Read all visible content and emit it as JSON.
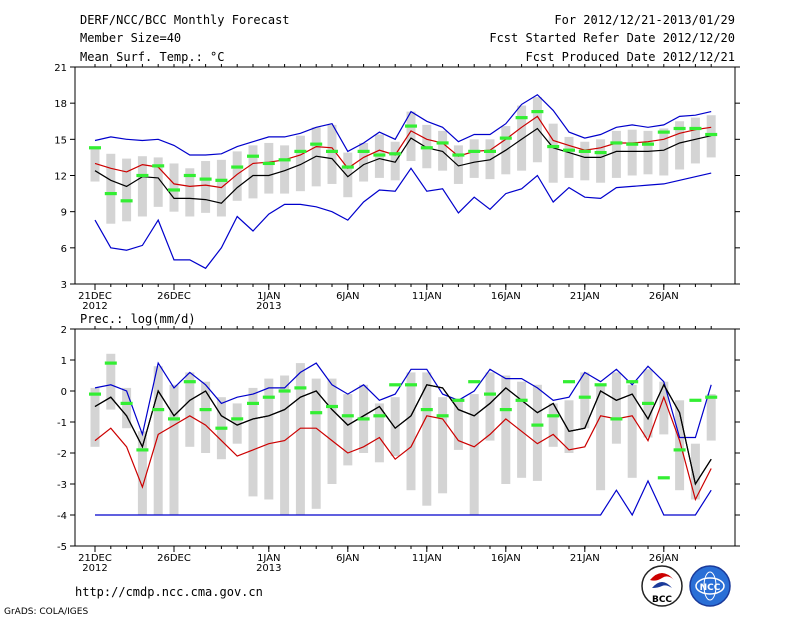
{
  "header": {
    "title": "DERF/NCC/BCC Monthly Forecast",
    "member_size": "Member Size=40",
    "variable": "Mean Surf. Temp.: °C",
    "forecast_period": "For 2012/12/21-2013/01/29",
    "started_date": "Fcst Started Refer Date 2012/12/20",
    "produced_date": "Fcst Produced Date 2012/12/21"
  },
  "footer": {
    "url": "http://cmdp.ncc.cma.gov.cn",
    "grads": "GrADS: COLA/IGES",
    "logo_left": "BCC",
    "logo_right": "NCC"
  },
  "colors": {
    "max": "#0000cc",
    "min": "#0000cc",
    "mean": "#000000",
    "median": "#cc0000",
    "box": "#d4d4d4",
    "obs": "#33ee33",
    "grid": "#aaaaaa"
  },
  "chart_data": [
    {
      "type": "line",
      "title": "Mean Surf. Temp.: °C",
      "x": [
        "21DEC",
        "22",
        "23",
        "24",
        "25",
        "26DEC",
        "27",
        "28",
        "29",
        "30",
        "31",
        "1JAN",
        "2",
        "3",
        "4",
        "5",
        "6JAN",
        "7",
        "8",
        "9",
        "10",
        "11JAN",
        "12",
        "13",
        "14",
        "15",
        "16JAN",
        "17",
        "18",
        "19",
        "20",
        "21JAN",
        "22",
        "23",
        "24",
        "25",
        "26JAN",
        "27",
        "28",
        "29"
      ],
      "xticks": [
        {
          "i": 0,
          "label": "21DEC",
          "sub": "2012"
        },
        {
          "i": 5,
          "label": "26DEC"
        },
        {
          "i": 11,
          "label": "1JAN",
          "sub": "2013"
        },
        {
          "i": 16,
          "label": "6JAN"
        },
        {
          "i": 21,
          "label": "11JAN"
        },
        {
          "i": 26,
          "label": "16JAN"
        },
        {
          "i": 31,
          "label": "21JAN"
        },
        {
          "i": 36,
          "label": "26JAN"
        }
      ],
      "ylim": [
        3,
        21
      ],
      "yticks": [
        3,
        6,
        9,
        12,
        15,
        18,
        21
      ],
      "series": [
        {
          "name": "max",
          "values": [
            14.9,
            15.2,
            15.0,
            14.9,
            15.0,
            14.5,
            13.7,
            13.7,
            13.8,
            14.4,
            14.8,
            15.2,
            15.2,
            15.5,
            16.0,
            16.3,
            14.0,
            14.7,
            15.6,
            15.0,
            17.3,
            16.5,
            16.0,
            14.8,
            15.4,
            15.4,
            16.3,
            17.9,
            18.7,
            17.4,
            15.6,
            15.1,
            15.4,
            16.0,
            16.2,
            16.0,
            16.2,
            16.9,
            17.0,
            17.3
          ]
        },
        {
          "name": "mean",
          "values": [
            12.4,
            11.6,
            11.1,
            11.9,
            11.8,
            10.1,
            10.1,
            10.0,
            9.7,
            11.0,
            12.0,
            12.0,
            12.4,
            12.9,
            13.6,
            13.4,
            11.9,
            12.9,
            13.4,
            13.1,
            15.1,
            14.3,
            14.0,
            12.8,
            13.1,
            13.3,
            14.1,
            15.0,
            15.9,
            14.3,
            13.9,
            13.5,
            13.5,
            14.0,
            14.0,
            14.0,
            14.1,
            14.7,
            15.0,
            15.3
          ]
        },
        {
          "name": "median",
          "values": [
            13.0,
            12.6,
            12.3,
            12.9,
            12.7,
            11.3,
            11.1,
            11.2,
            11.0,
            12.1,
            13.0,
            13.1,
            13.3,
            13.7,
            14.4,
            14.3,
            12.6,
            13.5,
            14.1,
            13.7,
            15.7,
            15.0,
            14.7,
            13.6,
            14.0,
            14.1,
            15.0,
            16.0,
            16.9,
            14.9,
            14.5,
            14.1,
            14.3,
            14.7,
            14.7,
            14.8,
            15.0,
            15.5,
            15.8,
            16.0
          ]
        },
        {
          "name": "min",
          "values": [
            8.3,
            6.0,
            5.8,
            6.2,
            8.3,
            5.0,
            5.0,
            4.3,
            6.0,
            8.6,
            7.4,
            8.8,
            9.6,
            9.6,
            9.4,
            9.0,
            8.3,
            9.8,
            10.8,
            10.7,
            12.6,
            10.7,
            10.9,
            8.9,
            10.2,
            9.2,
            10.5,
            10.9,
            12.0,
            9.8,
            11.0,
            10.2,
            10.1,
            11.0,
            11.1,
            11.2,
            11.3,
            11.6,
            11.9,
            12.2
          ]
        },
        {
          "name": "box_low",
          "values": [
            11.5,
            8.0,
            8.2,
            8.6,
            9.4,
            9.0,
            8.6,
            8.9,
            8.6,
            9.9,
            10.1,
            10.5,
            10.5,
            10.7,
            11.1,
            11.3,
            10.2,
            11.5,
            11.8,
            11.6,
            13.2,
            12.6,
            12.4,
            11.3,
            11.8,
            11.7,
            12.1,
            12.4,
            13.1,
            11.4,
            11.8,
            11.6,
            11.4,
            11.8,
            12.0,
            12.1,
            12.0,
            12.5,
            13.0,
            13.5
          ]
        },
        {
          "name": "box_high",
          "values": [
            14.4,
            13.8,
            13.4,
            13.6,
            13.5,
            13.0,
            12.6,
            13.2,
            13.3,
            14.0,
            14.5,
            14.7,
            14.5,
            15.3,
            16.0,
            16.2,
            13.9,
            14.7,
            15.4,
            14.8,
            17.3,
            16.2,
            15.7,
            14.5,
            15.0,
            15.0,
            16.1,
            17.8,
            18.5,
            16.3,
            15.2,
            14.8,
            15.0,
            15.7,
            15.8,
            15.7,
            15.9,
            16.5,
            16.8,
            17.0
          ]
        },
        {
          "name": "obs",
          "values": [
            14.3,
            10.5,
            9.9,
            12.0,
            12.8,
            10.8,
            12.0,
            11.7,
            11.6,
            12.7,
            13.6,
            13.0,
            13.3,
            14.0,
            14.6,
            14.0,
            12.7,
            14.0,
            13.7,
            13.8,
            16.1,
            14.3,
            14.7,
            13.7,
            14.0,
            14.0,
            15.1,
            16.8,
            17.3,
            14.4,
            14.1,
            14.0,
            13.9,
            14.7,
            14.6,
            14.6,
            15.6,
            15.9,
            15.9,
            15.4
          ]
        }
      ]
    },
    {
      "type": "line",
      "title": "Prec.: log(mm/d)",
      "x": [
        "21DEC",
        "22",
        "23",
        "24",
        "25",
        "26DEC",
        "27",
        "28",
        "29",
        "30",
        "31",
        "1JAN",
        "2",
        "3",
        "4",
        "5",
        "6JAN",
        "7",
        "8",
        "9",
        "10",
        "11JAN",
        "12",
        "13",
        "14",
        "15",
        "16JAN",
        "17",
        "18",
        "19",
        "20",
        "21JAN",
        "22",
        "23",
        "24",
        "25",
        "26JAN",
        "27",
        "28",
        "29"
      ],
      "xticks": [
        {
          "i": 0,
          "label": "21DEC",
          "sub": "2012"
        },
        {
          "i": 5,
          "label": "26DEC"
        },
        {
          "i": 11,
          "label": "1JAN",
          "sub": "2013"
        },
        {
          "i": 16,
          "label": "6JAN"
        },
        {
          "i": 21,
          "label": "11JAN"
        },
        {
          "i": 26,
          "label": "16JAN"
        },
        {
          "i": 31,
          "label": "21JAN"
        },
        {
          "i": 36,
          "label": "26JAN"
        }
      ],
      "ylim": [
        -5,
        2
      ],
      "yticks": [
        -5,
        -4,
        -3,
        -2,
        -1,
        0,
        1,
        2
      ],
      "series": [
        {
          "name": "max",
          "values": [
            0.1,
            0.2,
            0.0,
            -1.4,
            0.9,
            0.1,
            0.6,
            0.2,
            -0.4,
            -0.2,
            -0.1,
            0.1,
            0.1,
            0.6,
            0.9,
            0.2,
            -0.1,
            0.2,
            -0.3,
            -0.1,
            0.7,
            0.7,
            -0.1,
            -0.3,
            0.0,
            0.7,
            0.4,
            0.4,
            0.1,
            -0.3,
            -0.2,
            0.6,
            0.3,
            0.7,
            0.2,
            0.8,
            0.3,
            -1.5,
            -1.5,
            0.2
          ]
        },
        {
          "name": "mean",
          "values": [
            -0.5,
            -0.2,
            -0.8,
            -1.8,
            0.0,
            -0.8,
            -0.3,
            0.0,
            -0.8,
            -1.1,
            -0.9,
            -0.8,
            -0.6,
            -0.2,
            0.0,
            -0.6,
            -1.1,
            -0.8,
            -0.5,
            -1.2,
            -0.8,
            0.2,
            0.1,
            -0.6,
            -0.8,
            -0.4,
            0.1,
            -0.3,
            -0.7,
            -0.4,
            -1.3,
            -1.2,
            0.0,
            -0.3,
            -0.1,
            -0.9,
            0.2,
            -0.7,
            -3.0,
            -2.2
          ]
        },
        {
          "name": "median",
          "values": [
            -0.3,
            -0.2,
            -0.7,
            -1.7,
            0.1,
            -0.7,
            -0.2,
            0.1,
            -0.7,
            -1.0,
            -0.8,
            -0.7,
            -0.5,
            -0.1,
            0.1,
            -0.5,
            -1.0,
            -0.7,
            -0.4,
            -1.1,
            -0.7,
            0.3,
            0.2,
            -0.5,
            -0.7,
            -0.3,
            0.2,
            -0.2,
            -0.6,
            -0.3,
            -1.2,
            -1.1,
            0.1,
            -0.2,
            0.0,
            -0.8,
            0.3,
            -0.6,
            -2.8,
            -2.0
          ]
        },
        {
          "name": "min",
          "values": [
            -1.6,
            -1.2,
            -1.8,
            -3.1,
            -1.4,
            -1.1,
            -0.8,
            -1.1,
            -1.6,
            -2.1,
            -1.9,
            -1.7,
            -1.6,
            -1.2,
            -1.2,
            -1.6,
            -2.0,
            -1.8,
            -1.5,
            -2.2,
            -1.8,
            -0.8,
            -0.9,
            -1.6,
            -1.8,
            -1.4,
            -0.9,
            -1.3,
            -1.7,
            -1.4,
            -1.9,
            -1.8,
            -0.8,
            -0.9,
            -0.8,
            -1.6,
            -0.2,
            -1.6,
            -3.5,
            -2.5
          ]
        },
        {
          "name": "min_extreme",
          "values": [
            -4.0,
            -4.0,
            -4.0,
            -4.0,
            -4.0,
            -4.0,
            -4.0,
            -4.0,
            -4.0,
            -4.0,
            -4.0,
            -4.0,
            -4.0,
            -4.0,
            -4.0,
            -4.0,
            -4.0,
            -4.0,
            -4.0,
            -4.0,
            -4.0,
            -4.0,
            -4.0,
            -4.0,
            -4.0,
            -4.0,
            -4.0,
            -4.0,
            -4.0,
            -4.0,
            -4.0,
            -4.0,
            -4.0,
            -3.2,
            -4.0,
            -2.9,
            -4.0,
            -4.0,
            -4.0,
            -3.2
          ]
        },
        {
          "name": "box_low",
          "values": [
            -1.8,
            -0.6,
            -1.2,
            -4.0,
            -4.0,
            -4.0,
            -1.8,
            -2.0,
            -2.2,
            -1.7,
            -3.4,
            -3.5,
            -4.0,
            -4.0,
            -3.8,
            -3.0,
            -2.4,
            -2.0,
            -2.3,
            -2.1,
            -3.2,
            -3.7,
            -3.3,
            -1.9,
            -4.0,
            -1.6,
            -3.0,
            -2.8,
            -2.9,
            -1.8,
            -2.0,
            -1.2,
            -3.2,
            -1.7,
            -2.8,
            -1.5,
            -1.4,
            -3.2,
            -3.5,
            -1.6
          ]
        },
        {
          "name": "box_high",
          "values": [
            0.1,
            1.2,
            0.1,
            -1.3,
            0.8,
            0.2,
            0.6,
            0.3,
            -0.2,
            -0.4,
            0.1,
            0.4,
            0.5,
            0.9,
            0.4,
            0.4,
            -0.1,
            0.2,
            -0.4,
            -0.2,
            0.6,
            0.6,
            -0.2,
            -0.3,
            -0.1,
            0.6,
            0.5,
            0.3,
            0.2,
            -0.4,
            -0.3,
            0.6,
            0.2,
            0.6,
            0.2,
            0.7,
            0.3,
            -0.3,
            -1.7,
            -0.1
          ]
        },
        {
          "name": "obs",
          "values": [
            -0.1,
            0.9,
            -0.4,
            -1.9,
            -0.6,
            -0.9,
            0.3,
            -0.6,
            -1.2,
            -0.9,
            -0.4,
            -0.2,
            0.0,
            0.1,
            -0.7,
            -0.5,
            -0.8,
            -0.9,
            -0.8,
            0.2,
            0.2,
            -0.6,
            -0.8,
            -0.3,
            0.3,
            -0.1,
            -0.6,
            -0.3,
            -1.1,
            -0.8,
            0.3,
            -0.2,
            0.2,
            -0.9,
            0.3,
            -0.4,
            -2.8,
            -1.9,
            -0.3,
            -0.2
          ]
        }
      ]
    }
  ]
}
